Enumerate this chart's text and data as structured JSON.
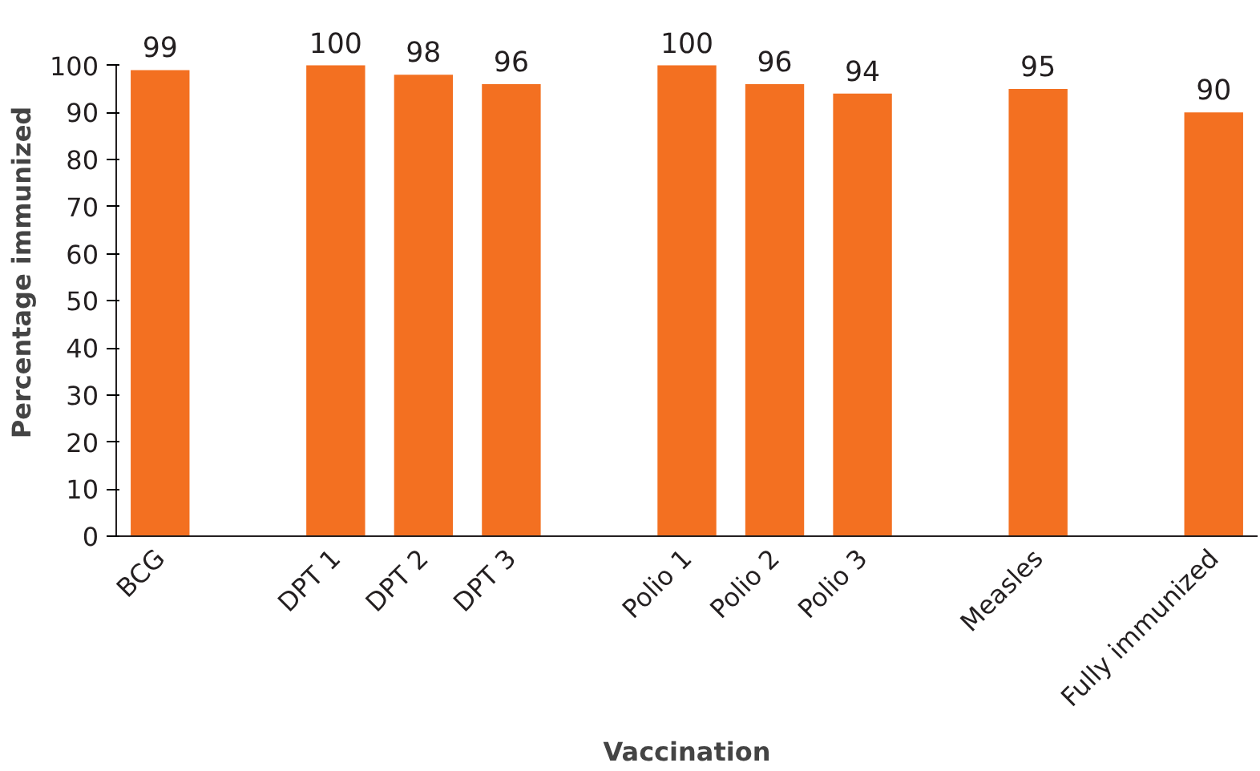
{
  "chart_data": {
    "type": "bar",
    "xlabel": "Vaccination",
    "ylabel": "Percentage immunized",
    "categories": [
      "BCG",
      null,
      "DPT 1",
      "DPT 2",
      "DPT 3",
      null,
      "Polio 1",
      "Polio 2",
      "Polio 3",
      null,
      "Measles",
      null,
      "Fully immunized"
    ],
    "values": [
      99,
      null,
      100,
      98,
      96,
      null,
      100,
      96,
      94,
      null,
      95,
      null,
      90
    ],
    "color": "#f37021",
    "data_labels": true,
    "ylim": [
      0,
      100
    ],
    "yticks": [
      0,
      10,
      20,
      30,
      40,
      50,
      60,
      70,
      80,
      90,
      100
    ],
    "grid": false
  }
}
